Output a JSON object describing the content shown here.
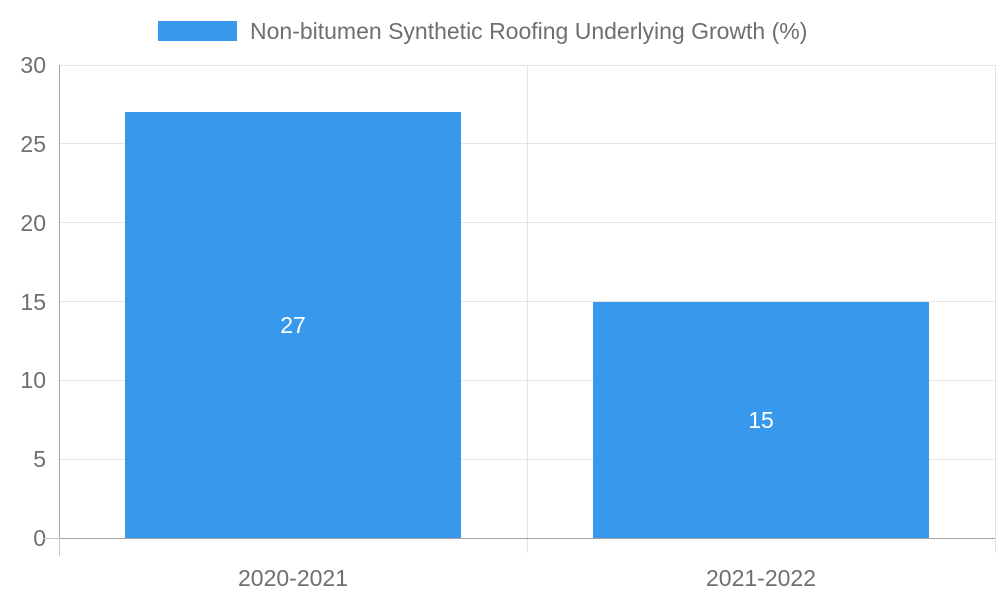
{
  "colors": {
    "bar": "#3898EC",
    "bar_label": "#ffffff",
    "text": "#6f6f6f",
    "grid_line": "#e4e4e4",
    "axis_line": "#a2a2a2",
    "tick_line": "#c6c6c6"
  },
  "legend": {
    "label": "Non-bitumen Synthetic Roofing Underlying Growth (%)"
  },
  "chart_data": {
    "type": "bar",
    "categories": [
      "2020-2021",
      "2021-2022"
    ],
    "values": [
      27,
      15
    ],
    "series": [
      {
        "name": "Non-bitumen Synthetic Roofing Underlying Growth (%)",
        "values": [
          27,
          15
        ]
      }
    ],
    "title": "",
    "xlabel": "",
    "ylabel": "",
    "ylim": [
      0,
      30
    ],
    "yticks": [
      0,
      5,
      10,
      15,
      20,
      25,
      30
    ],
    "grid": true,
    "legend_position": "top",
    "data_labels": "inside-center",
    "bar_color": "#3898EC"
  }
}
